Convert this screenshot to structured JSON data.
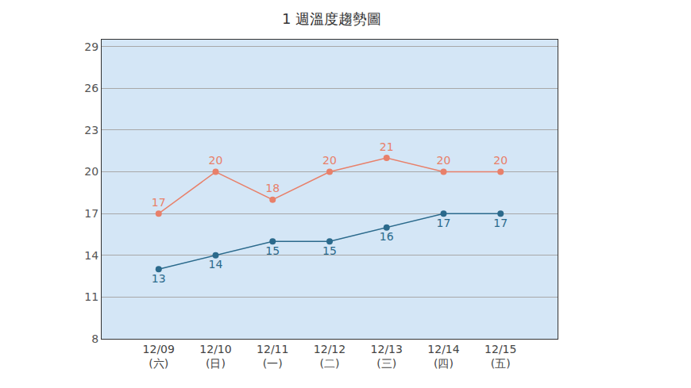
{
  "chart_data": {
    "type": "line",
    "title": "1 週溫度趨勢圖",
    "categories": [
      "12/09\n(六)",
      "12/10\n(日)",
      "12/11\n(一)",
      "12/12\n(二)",
      "12/13\n(三)",
      "12/14\n(四)",
      "12/15\n(五)"
    ],
    "series": [
      {
        "color": "#e8806a",
        "marker": "circle",
        "line_style": "solid",
        "values": [
          17,
          20,
          18,
          20,
          21,
          20,
          20
        ]
      },
      {
        "color": "#2b6a8c",
        "marker": "circle",
        "line_style": "solid",
        "values": [
          13,
          14,
          15,
          15,
          16,
          17,
          17
        ]
      }
    ],
    "ylim": [
      8,
      29.5
    ],
    "yticks": [
      8,
      11,
      14,
      17,
      20,
      23,
      26,
      29
    ],
    "grid": true,
    "data_labels": true
  }
}
